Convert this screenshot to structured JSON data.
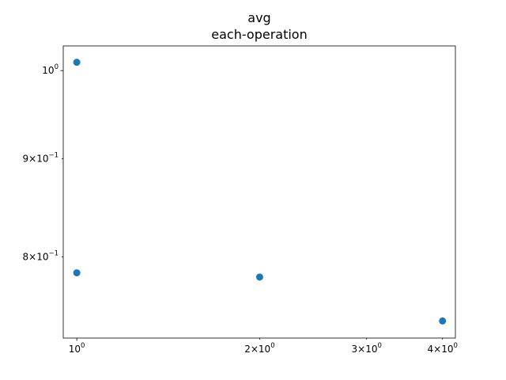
{
  "chart_data": {
    "type": "scatter",
    "title": "avg",
    "subtitle": "each-operation",
    "xlabel": "",
    "ylabel": "",
    "x_scale": "log",
    "y_scale": "log",
    "xlim": [
      0.95,
      4.2
    ],
    "ylim": [
      0.726,
      1.03
    ],
    "grid": false,
    "legend": "none",
    "marker_color": "#1f77b4",
    "x_ticks": [
      {
        "value": 1,
        "mantissa": "",
        "base": "10",
        "exp": "0"
      },
      {
        "value": 2,
        "mantissa": "2",
        "base": "10",
        "exp": "0"
      },
      {
        "value": 3,
        "mantissa": "3",
        "base": "10",
        "exp": "0"
      },
      {
        "value": 4,
        "mantissa": "4",
        "base": "10",
        "exp": "0"
      }
    ],
    "y_ticks": [
      {
        "value": 0.8,
        "mantissa": "8",
        "base": "10",
        "exp": "−1"
      },
      {
        "value": 0.9,
        "mantissa": "9",
        "base": "10",
        "exp": "−1"
      },
      {
        "value": 1.0,
        "mantissa": "",
        "base": "10",
        "exp": "0"
      }
    ],
    "series": [
      {
        "points": [
          {
            "x": 1,
            "y": 1.01
          },
          {
            "x": 1,
            "y": 0.785
          },
          {
            "x": 2,
            "y": 0.781
          },
          {
            "x": 4,
            "y": 0.741
          }
        ]
      }
    ]
  }
}
